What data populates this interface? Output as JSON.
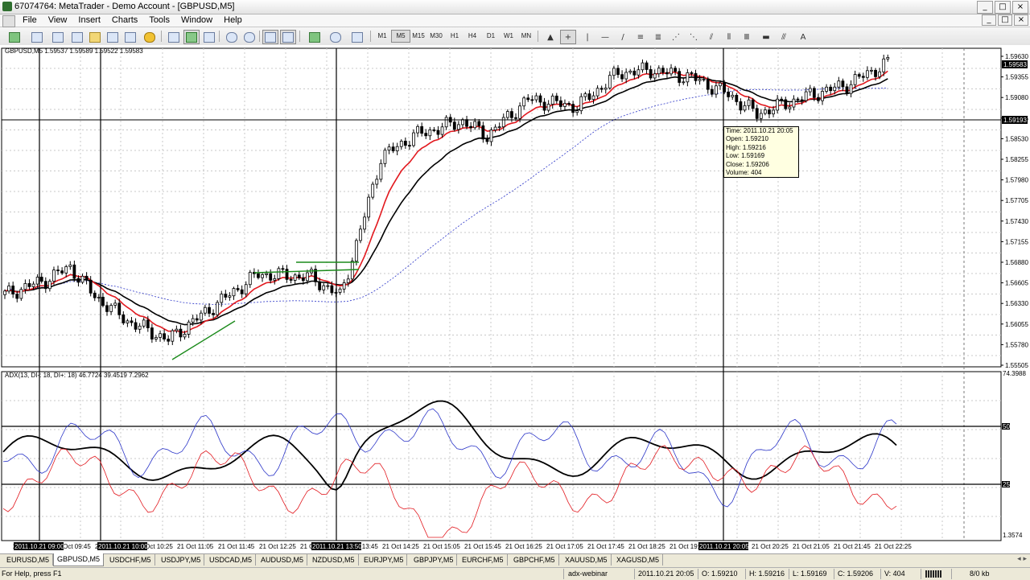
{
  "window": {
    "title": "67074764: MetaTrader - Demo Account - [GBPUSD,M5]"
  },
  "window_buttons": [
    "_",
    "□",
    "×"
  ],
  "menu": [
    "File",
    "View",
    "Insert",
    "Charts",
    "Tools",
    "Window",
    "Help"
  ],
  "timeframes": [
    "M1",
    "M5",
    "M15",
    "M30",
    "H1",
    "H4",
    "D1",
    "W1",
    "MN"
  ],
  "active_timeframe": "M5",
  "chart": {
    "header": "GBPUSD,M5  1.59537 1.59589 1.59522 1.59583",
    "price_labels": [
      "1.59630",
      "1.59355",
      "1.59080",
      "1.58805",
      "1.58530",
      "1.58255",
      "1.57980",
      "1.57705",
      "1.57430",
      "1.57155",
      "1.56880",
      "1.56605",
      "1.56330",
      "1.56055",
      "1.55780",
      "1.55505"
    ],
    "price_axis_labels": [
      "1.59630",
      "1.59355",
      "1.59080",
      "1.58805",
      "1.58530",
      "1.58255",
      "1.57980",
      "1.57705",
      "1.57430",
      "1.57155",
      "1.56880",
      "1.56605",
      "1.56330",
      "1.56055",
      "1.55780",
      "1.55505"
    ],
    "current_price_label": "1.59583",
    "crosshair_price_label": "1.59193",
    "tooltip": {
      "time": "Time: 2011.10.21 20:05",
      "open": "Open: 1.59210",
      "high": "High: 1.59216",
      "low": "Low:  1.59169",
      "close": "Close: 1.59206",
      "volume": "Volume: 404"
    },
    "indicator_header": "ADX(13, DI-: 18, DI+: 18) 46.7724 39.4519 7.2962",
    "indicator_top": "74.3988",
    "indicator_bottom": "1.3574",
    "indicator_level_50": "50",
    "indicator_level_25": "25",
    "time_labels": [
      "21 Oct 09:",
      "21 Oct 09:45",
      "21 Oct 10:",
      "21 Oct 10:25",
      "21 Oct 11:05",
      "21 Oct 11:45",
      "21 Oct 12:25",
      "21 Oct 13:",
      "21 Oct 13:45",
      "21 Oct 14:25",
      "21 Oct 15:05",
      "21 Oct 15:45",
      "21 Oct 16:25",
      "21 Oct 17:05",
      "21 Oct 17:45",
      "21 Oct 18:25",
      "21 Oct 19:05",
      "21 Oct 19:45",
      "21 Oct 20:25",
      "21 Oct 21:05",
      "21 Oct 21:45",
      "21 Oct 22:25"
    ],
    "highlighted_time_labels": [
      "2011.10.21 09:00",
      "2011.10.21 10:00",
      "2011.10.21 13:50",
      "2011.10.21 20:05"
    ],
    "colors": {
      "bull": "#ffffff",
      "bear": "#000000",
      "ma_red": "#e2191f",
      "ma_black": "#000000",
      "ma_blue": "#2b35c8",
      "trend_green": "#1b8a1b"
    }
  },
  "symbol_tabs": [
    "EURUSD,M5",
    "GBPUSD,M5",
    "USDCHF,M5",
    "USDJPY,M5",
    "USDCAD,M5",
    "AUDUSD,M5",
    "NZDUSD,M5",
    "EURJPY,M5",
    "GBPJPY,M5",
    "EURCHF,M5",
    "GBPCHF,M5",
    "XAUUSD,M5",
    "XAGUSD,M5"
  ],
  "active_symbol_tab": "GBPUSD,M5",
  "statusbar": {
    "help": "For Help, press F1",
    "profile": "adx-webinar",
    "datetime": "2011.10.21 20:05",
    "open": "O: 1.59210",
    "high": "H: 1.59216",
    "low": "L: 1.59169",
    "close": "C: 1.59206",
    "volume": "V: 404",
    "traffic": "8/0 kb"
  }
}
